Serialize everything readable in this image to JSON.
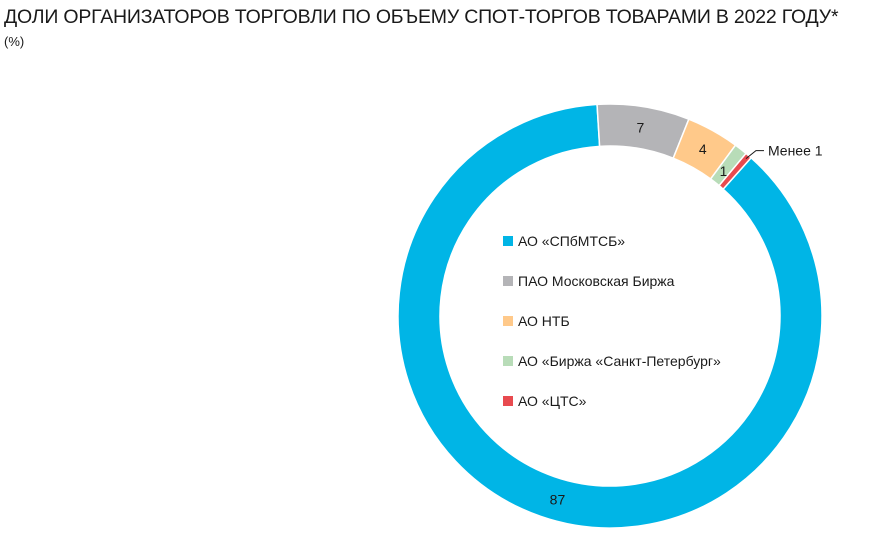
{
  "title": "ДОЛИ ОРГАНИЗАТОРОВ ТОРГОВЛИ ПО ОБЪЕМУ СПОТ-ТОРГОВ ТОВАРАМИ В 2022 ГОДУ*",
  "subtitle": "(%)",
  "chart_data": {
    "type": "pie",
    "title": "ДОЛИ ОРГАНИЗАТОРОВ ТОРГОВЛИ ПО ОБЪЕМУ СПОТ-ТОРГОВ ТОВАРАМИ В 2022 ГОДУ*",
    "unit": "(%)",
    "donut": true,
    "legend_position": "inside",
    "slices": [
      {
        "name": "АО «СПбМТСБ»",
        "value": 87,
        "label": "87",
        "color": "#00b5e6"
      },
      {
        "name": "ПАО Московская Биржа",
        "value": 7,
        "label": "7",
        "color": "#b4b4b7"
      },
      {
        "name": "АО НТБ",
        "value": 4,
        "label": "4",
        "color": "#ffc98a"
      },
      {
        "name": "АО «Биржа «Санкт-Петербург»",
        "value": 1,
        "label": "1",
        "color": "#b8dcb8"
      },
      {
        "name": "АО «ЦТС»",
        "value": 0.5,
        "label": "Менее 1",
        "color": "#e84a4f"
      }
    ]
  }
}
